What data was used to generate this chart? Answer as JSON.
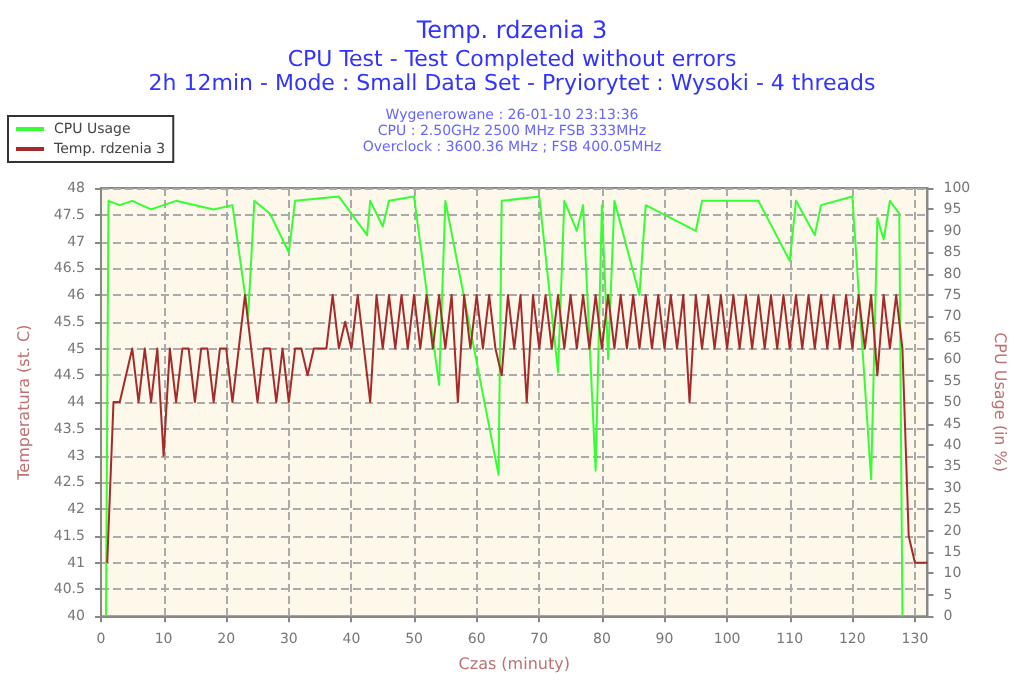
{
  "chart_data": {
    "type": "line",
    "title": "Temp. rdzenia 3",
    "subtitle": "CPU Test - Test Completed without errors",
    "annotations": [
      "2h 12min - Mode : Small Data Set - Pryiorytet : Wysoki - 4 threads",
      "Wygenerowane : 26-01-10 23:13:36",
      "CPU : 2.50GHz 2500 MHz FSB 333MHz",
      "Overclock : 3600.36 MHz ; FSB 400.05MHz"
    ],
    "xlabel": "Czas (minuty)",
    "ylabel": "Temperatura (st. C)",
    "y2label": "CPU Usage (in %)",
    "xlim": [
      0,
      132
    ],
    "xticks": [
      0,
      10,
      20,
      30,
      40,
      50,
      60,
      70,
      80,
      90,
      100,
      110,
      120,
      130
    ],
    "ylim": [
      40,
      48
    ],
    "yticks": [
      40,
      40.5,
      41,
      41.5,
      42,
      42.5,
      43,
      43.5,
      44,
      44.5,
      45,
      45.5,
      46,
      46.5,
      47,
      47.5,
      48
    ],
    "y2lim": [
      0,
      100
    ],
    "y2ticks": [
      0,
      5,
      10,
      15,
      20,
      25,
      30,
      35,
      40,
      45,
      50,
      55,
      60,
      65,
      70,
      75,
      80,
      85,
      90,
      95,
      100
    ],
    "grid": true,
    "legend": "top left",
    "marker": "none",
    "line_style": "solid",
    "series": [
      {
        "name": "CPU Usage",
        "color": "#33ff33",
        "axis": "y2",
        "x": [
          0.8,
          1.2,
          3,
          5,
          8,
          12,
          18,
          21,
          23.5,
          24.5,
          27,
          30,
          31,
          38,
          42.5,
          43,
          45,
          46,
          50,
          54,
          55,
          63.5,
          64,
          70,
          73,
          74,
          76,
          77,
          79,
          80,
          81,
          82,
          86,
          87,
          95,
          96,
          105,
          110,
          111,
          114,
          115,
          120,
          123,
          124,
          125,
          126,
          127.5,
          128
        ],
        "values": [
          0,
          97,
          96,
          97,
          95,
          97,
          95,
          96,
          70,
          97,
          94,
          85,
          97,
          98,
          89,
          97,
          91,
          97,
          98,
          54,
          97,
          33,
          97,
          98,
          57,
          97,
          90,
          96,
          34,
          96,
          60,
          97,
          75,
          96,
          90,
          97,
          97,
          83,
          97,
          89,
          96,
          98,
          32,
          93,
          88,
          97,
          94,
          0
        ]
      },
      {
        "name": "Temp. rdzenia 3",
        "color": "#a52a2a",
        "x": [
          1,
          2,
          3,
          4,
          5,
          6,
          7,
          8,
          9,
          10,
          11,
          12,
          13,
          14,
          15,
          16,
          17,
          18,
          19,
          20,
          21,
          22,
          23,
          24,
          25,
          26,
          27,
          28,
          29,
          30,
          31,
          32,
          33,
          34,
          35,
          36,
          37,
          38,
          39,
          40,
          41,
          42,
          43,
          44,
          45,
          46,
          47,
          48,
          49,
          50,
          51,
          52,
          53,
          54,
          55,
          56,
          57,
          58,
          59,
          60,
          61,
          62,
          63,
          64,
          65,
          66,
          67,
          68,
          69,
          70,
          71,
          72,
          73,
          74,
          75,
          76,
          77,
          78,
          79,
          80,
          81,
          82,
          83,
          84,
          85,
          86,
          87,
          88,
          89,
          90,
          91,
          92,
          93,
          94,
          95,
          96,
          97,
          98,
          99,
          100,
          101,
          102,
          103,
          104,
          105,
          106,
          107,
          108,
          109,
          110,
          111,
          112,
          113,
          114,
          115,
          116,
          117,
          118,
          119,
          120,
          121,
          122,
          123,
          124,
          125,
          126,
          127,
          128,
          129,
          130,
          132
        ],
        "values": [
          41,
          44,
          44,
          44.5,
          45,
          44,
          45,
          44,
          45,
          43,
          45,
          44,
          45,
          45,
          44,
          45,
          45,
          44,
          45,
          45,
          44,
          45,
          46,
          45,
          44,
          45,
          45,
          44,
          45,
          44,
          45,
          45,
          44.5,
          45,
          45,
          45,
          46,
          45,
          45.5,
          45,
          46,
          45,
          44,
          46,
          45,
          46,
          45,
          46,
          45,
          46,
          45,
          46,
          45,
          46,
          45,
          46,
          44,
          46,
          45,
          46,
          45,
          46,
          45,
          44.5,
          46,
          45,
          46,
          44,
          46,
          45,
          46,
          45,
          46,
          45,
          46,
          45,
          46,
          45,
          46,
          45,
          46,
          45,
          46,
          45,
          46,
          45,
          46,
          45,
          46,
          45,
          46,
          45,
          46,
          44,
          46,
          45,
          46,
          45,
          46,
          45,
          46,
          45,
          46,
          45,
          46,
          45,
          46,
          45,
          46,
          45,
          46,
          45,
          46,
          45,
          46,
          45,
          46,
          45,
          46,
          45,
          46,
          45,
          46,
          44.5,
          46,
          45,
          46,
          45,
          41.5,
          41,
          41
        ]
      }
    ]
  }
}
